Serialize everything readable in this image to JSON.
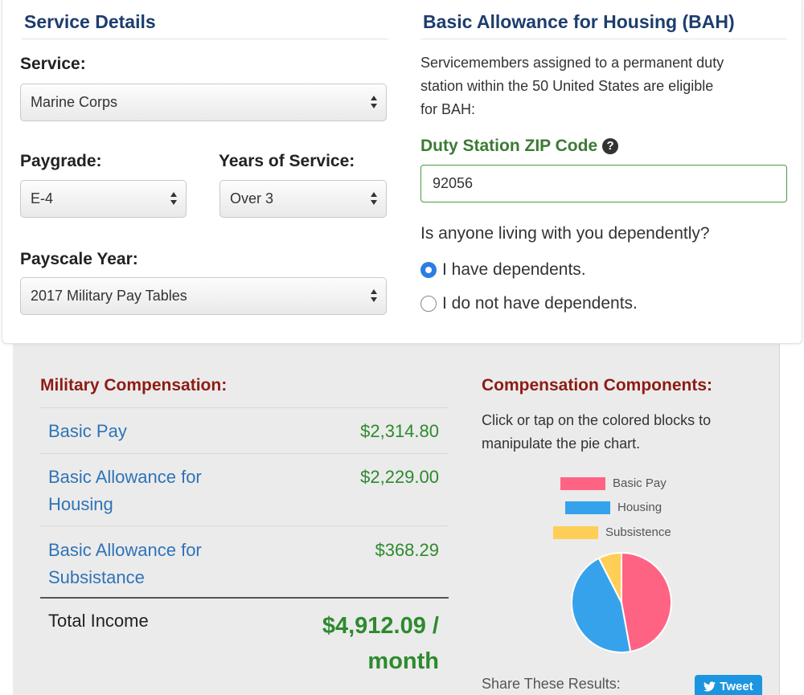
{
  "service_details": {
    "title": "Service Details",
    "service_label": "Service:",
    "service_value": "Marine Corps",
    "paygrade_label": "Paygrade:",
    "paygrade_value": "E-4",
    "years_label": "Years of Service:",
    "years_value": "Over 3",
    "payscale_label": "Payscale Year:",
    "payscale_value": "2017 Military Pay Tables"
  },
  "bah": {
    "title": "Basic Allowance for Housing (BAH)",
    "description_lines": [
      "Servicemembers assigned to a permanent duty",
      "station within the 50 United States are eligible",
      "for BAH:"
    ],
    "zip_label": "Duty Station ZIP Code",
    "zip_help_icon": "question-circle-icon",
    "zip_value": "92056",
    "dependents_question": "Is anyone living with you dependently?",
    "options": [
      {
        "label": "I have dependents.",
        "selected": true
      },
      {
        "label": "I do not have dependents.",
        "selected": false
      }
    ]
  },
  "compensation": {
    "title": "Military Compensation:",
    "rows": [
      {
        "label_lines": [
          "Basic Pay"
        ],
        "value": "$2,314.80"
      },
      {
        "label_lines": [
          "Basic Allowance for",
          "Housing"
        ],
        "value": "$2,229.00"
      },
      {
        "label_lines": [
          "Basic Allowance for",
          "Subsistance"
        ],
        "value": "$368.29"
      }
    ],
    "total_label": "Total Income",
    "total_value_lines": [
      "$4,912.09 /",
      "month"
    ]
  },
  "components": {
    "title": "Compensation Components:",
    "instructions_lines": [
      "Click or tap on the colored blocks to",
      "manipulate the pie chart."
    ],
    "share_label": "Share These Results:",
    "tweet_label": "Tweet",
    "tweet_icon": "twitter-bird-icon"
  },
  "chart_data": {
    "type": "pie",
    "categories": [
      "Basic Pay",
      "Housing",
      "Subsistence"
    ],
    "values": [
      2314.8,
      2229.0,
      368.29
    ],
    "colors": [
      "#ff6384",
      "#36a2eb",
      "#ffce56"
    ],
    "title": "",
    "legend_position": "top"
  }
}
